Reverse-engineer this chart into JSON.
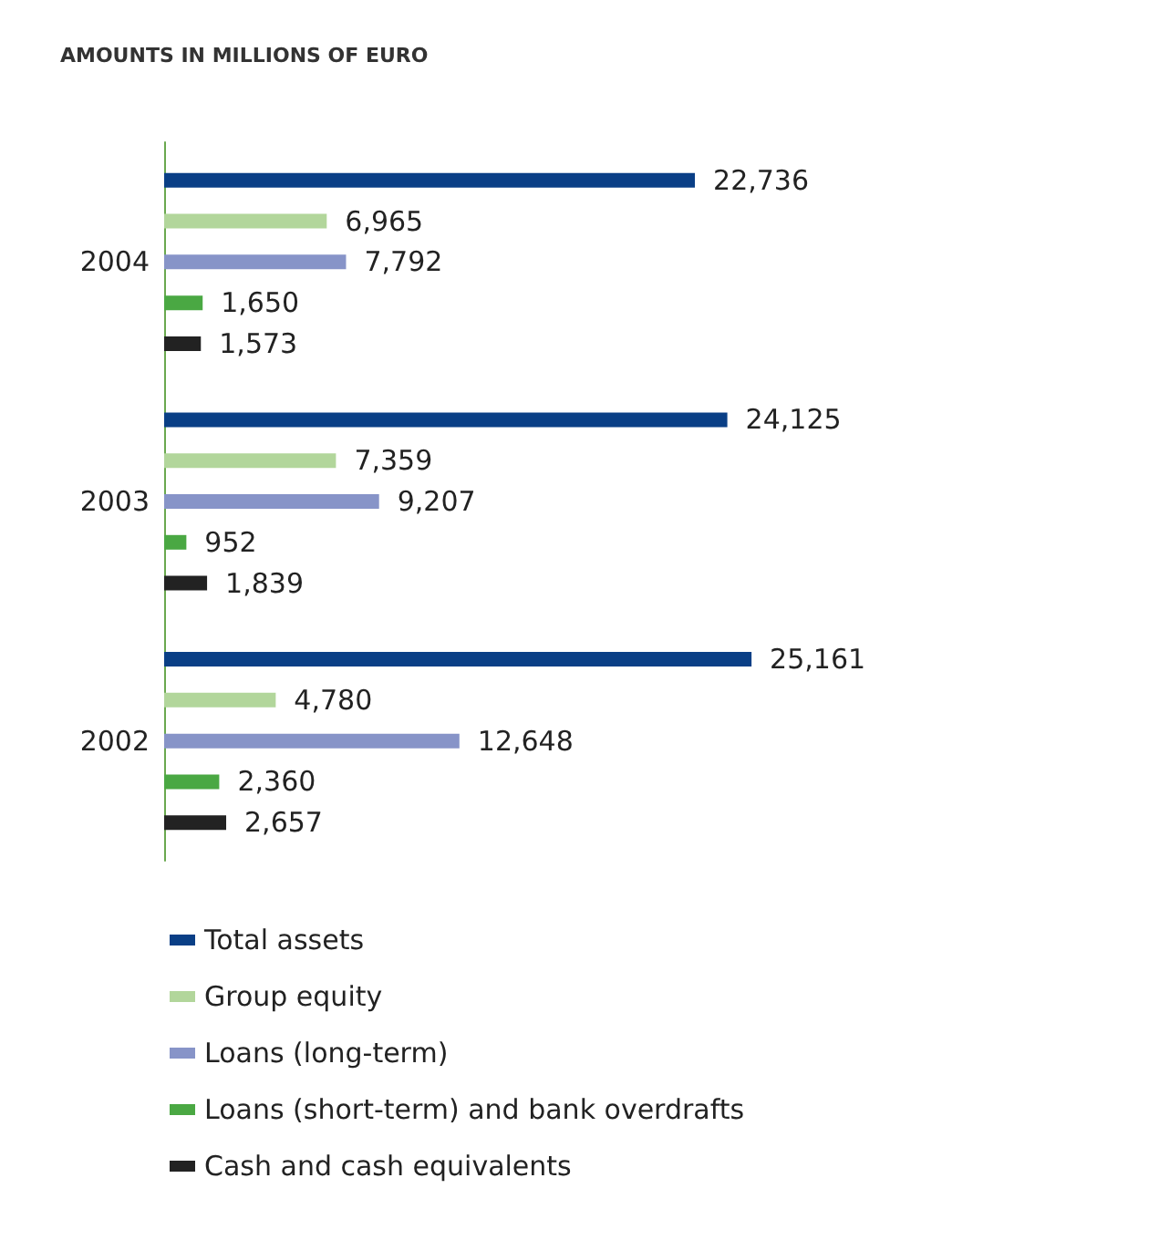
{
  "chart_data": {
    "type": "bar",
    "orientation": "horizontal",
    "title": "AMOUNTS IN MILLIONS OF EURO",
    "categories": [
      "2004",
      "2003",
      "2002"
    ],
    "series": [
      {
        "name": "Total assets",
        "color": "#0a3f86",
        "values": [
          22736,
          24125,
          25161
        ],
        "value_labels": [
          "22,736",
          "24,125",
          "25,161"
        ]
      },
      {
        "name": "Group equity",
        "color": "#b2d69b",
        "values": [
          6965,
          7359,
          4780
        ],
        "value_labels": [
          "6,965",
          "7,359",
          "4,780"
        ]
      },
      {
        "name": "Loans (long-term)",
        "color": "#8794c8",
        "values": [
          7792,
          9207,
          12648
        ],
        "value_labels": [
          "7,792",
          "9,207",
          "12,648"
        ]
      },
      {
        "name": "Loans (short-term) and bank overdrafts",
        "color": "#4aa843",
        "values": [
          1650,
          952,
          2360
        ],
        "value_labels": [
          "1,650",
          "952",
          "2,360"
        ]
      },
      {
        "name": "Cash and cash equivalents",
        "color": "#222222",
        "values": [
          1573,
          1839,
          2657
        ],
        "value_labels": [
          "1,573",
          "1,839",
          "2,657"
        ]
      }
    ],
    "tick_labels": "y",
    "grid": false,
    "legend": "bottom"
  }
}
